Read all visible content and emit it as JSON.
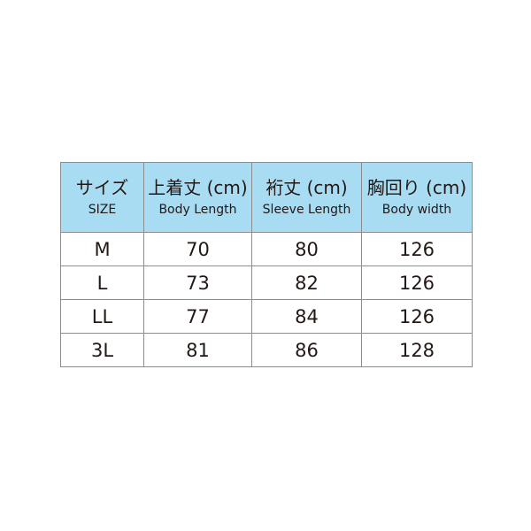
{
  "table": {
    "header": [
      {
        "ja": "サイズ",
        "en": "SIZE"
      },
      {
        "ja": "上着丈 (cm)",
        "en": "Body Length"
      },
      {
        "ja": "裄丈 (cm)",
        "en": "Sleeve Length"
      },
      {
        "ja": "胸回り (cm)",
        "en": "Body width"
      }
    ],
    "rows": [
      [
        "M",
        70,
        80,
        126
      ],
      [
        "L",
        73,
        82,
        126
      ],
      [
        "LL",
        77,
        84,
        126
      ],
      [
        "3L",
        81,
        86,
        128
      ]
    ]
  }
}
